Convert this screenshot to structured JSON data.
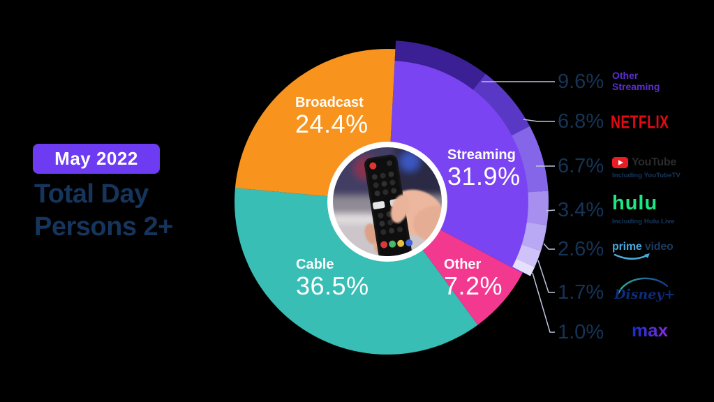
{
  "badge": {
    "label": "May 2022"
  },
  "title": {
    "line1": "Total Day",
    "line2": "Persons 2+"
  },
  "chart_data": {
    "type": "pie",
    "title": "Total Day Persons 2+",
    "period": "May 2022",
    "units": "percent share of total TV viewing",
    "start_angle_deg": 3,
    "direction": "clockwise",
    "center_image": "hand-holding-tv-remote",
    "slices": [
      {
        "label": "Streaming",
        "value": 31.9,
        "display": "31.9%",
        "color": "#7B44F2"
      },
      {
        "label": "Other",
        "value": 7.2,
        "display": "7.2%",
        "color": "#F2388F"
      },
      {
        "label": "Cable",
        "value": 36.5,
        "display": "36.5%",
        "color": "#38BEB4"
      },
      {
        "label": "Broadcast",
        "value": 24.4,
        "display": "24.4%",
        "color": "#F8941D"
      }
    ],
    "streaming_breakdown": [
      {
        "label": "Other Streaming",
        "value": 9.6,
        "display": "9.6%",
        "ring_color": "#3B2095"
      },
      {
        "label": "Netflix",
        "value": 6.8,
        "display": "6.8%",
        "ring_color": "#5A38C6"
      },
      {
        "label": "YouTube",
        "value": 6.7,
        "display": "6.7%",
        "ring_color": "#8566E9",
        "caption": "Including YouTubeTV"
      },
      {
        "label": "Hulu",
        "value": 3.4,
        "display": "3.4%",
        "ring_color": "#A78FF0",
        "caption": "Including Hulu Live"
      },
      {
        "label": "Prime Video",
        "value": 2.6,
        "display": "2.6%",
        "ring_color": "#B9A8F4"
      },
      {
        "label": "Disney+",
        "value": 1.7,
        "display": "1.7%",
        "ring_color": "#CEC2F8"
      },
      {
        "label": "Max",
        "value": 1.0,
        "display": "1.0%",
        "ring_color": "#E6E0FC"
      }
    ],
    "legend_position": "right"
  },
  "logos": {
    "other_streaming_line1": "Other",
    "other_streaming_line2": "Streaming",
    "netflix": "NETFLIX",
    "youtube": "YouTube",
    "youtube_caption": "Including YouTubeTV",
    "hulu": "hulu",
    "hulu_caption": "Including Hulu Live",
    "prime": "prime",
    "prime_video": "video",
    "disney": "Disney+",
    "max": "max"
  },
  "colors": {
    "background": "#000000",
    "badge": "#6C3BF2",
    "navy_text": "#16355C",
    "connector_line": "#BEC6DD"
  }
}
